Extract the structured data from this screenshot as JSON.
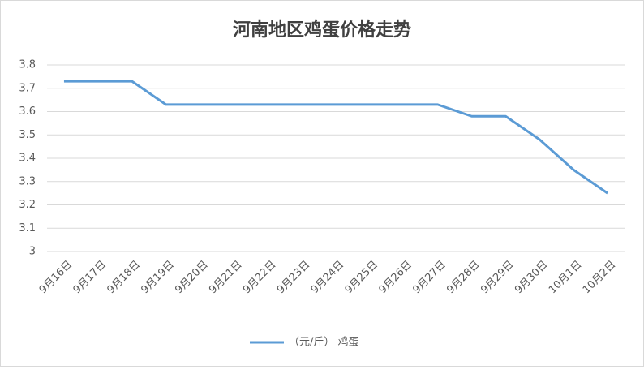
{
  "chart_data": {
    "type": "line",
    "title": "河南地区鸡蛋价格走势",
    "categories": [
      "9月16日",
      "9月17日",
      "9月18日",
      "9月19日",
      "9月20日",
      "9月21日",
      "9月22日",
      "9月23日",
      "9月24日",
      "9月25日",
      "9月26日",
      "9月27日",
      "9月28日",
      "9月29日",
      "9月30日",
      "10月1日",
      "10月2日"
    ],
    "series": [
      {
        "name": "（元/斤） 鸡蛋",
        "color": "#5b9bd5",
        "values": [
          3.73,
          3.73,
          3.73,
          3.63,
          3.63,
          3.63,
          3.63,
          3.63,
          3.63,
          3.63,
          3.63,
          3.63,
          3.58,
          3.58,
          3.48,
          3.35,
          3.25
        ]
      }
    ],
    "ylim": [
      3,
      3.8
    ],
    "yticks": [
      3,
      3.1,
      3.2,
      3.3,
      3.4,
      3.5,
      3.6,
      3.7,
      3.8
    ],
    "grid": true,
    "legend": "bottom"
  }
}
